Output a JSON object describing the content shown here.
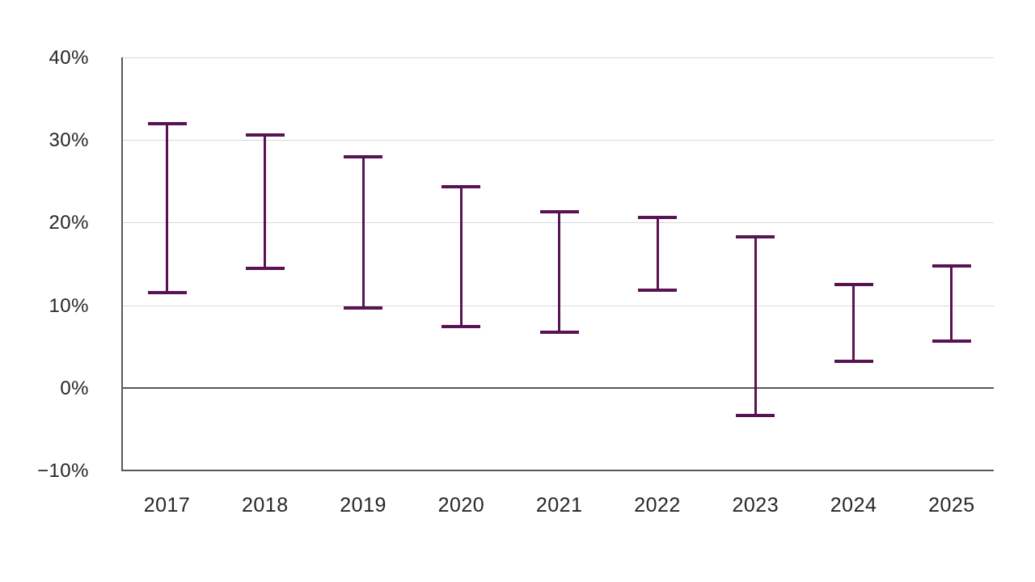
{
  "chart_data": {
    "type": "bar",
    "subtype": "high-low-range",
    "title": "",
    "xlabel": "",
    "ylabel": "",
    "categories": [
      "2017",
      "2018",
      "2019",
      "2020",
      "2021",
      "2022",
      "2023",
      "2024",
      "2025"
    ],
    "series": [
      {
        "name": "low",
        "values": [
          11.5,
          14.5,
          9.7,
          7.4,
          6.7,
          11.8,
          -3.3,
          3.2,
          5.7
        ]
      },
      {
        "name": "high",
        "values": [
          32.0,
          30.6,
          28.0,
          24.3,
          21.3,
          20.6,
          18.3,
          12.5,
          14.8
        ]
      }
    ],
    "ylim": [
      -10,
      40
    ],
    "yticks": [
      40,
      30,
      20,
      10,
      0,
      -10
    ],
    "ytick_suffix": "%",
    "minus_sign": "−",
    "grid": "horizontal",
    "legend": "none",
    "colors": {
      "bar": "#591353",
      "gridline": "#d9d9d9",
      "axis": "#595959",
      "zero_line": "#595959",
      "label_text": "#262626"
    }
  }
}
